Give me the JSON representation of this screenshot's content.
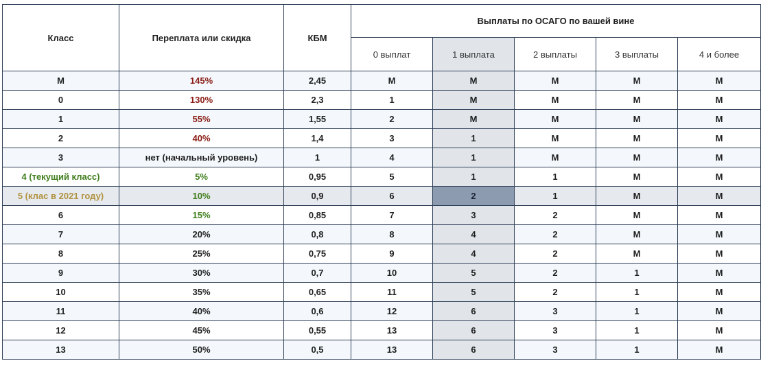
{
  "table": {
    "headers": {
      "class": "Класс",
      "discount": "Переплата или скидка",
      "kbm": "КБМ",
      "payouts_group": "Выплаты по ОСАГО по вашей вине",
      "payouts": [
        "0 выплат",
        "1 выплата",
        "2 выплаты",
        "3 выплаты",
        "4 и более"
      ]
    },
    "rows": [
      {
        "class": "M",
        "discount": "145%",
        "kbm": "2,45",
        "p": [
          "M",
          "M",
          "M",
          "M",
          "M"
        ]
      },
      {
        "class": "0",
        "discount": "130%",
        "kbm": "2,3",
        "p": [
          "1",
          "M",
          "M",
          "M",
          "M"
        ]
      },
      {
        "class": "1",
        "discount": "55%",
        "kbm": "1,55",
        "p": [
          "2",
          "M",
          "M",
          "M",
          "M"
        ]
      },
      {
        "class": "2",
        "discount": "40%",
        "kbm": "1,4",
        "p": [
          "3",
          "1",
          "M",
          "M",
          "M"
        ]
      },
      {
        "class": "3",
        "discount": "нет (начальный уровень)",
        "kbm": "1",
        "p": [
          "4",
          "1",
          "M",
          "M",
          "M"
        ]
      },
      {
        "class": "4 (текущий класс)",
        "discount": "5%",
        "kbm": "0,95",
        "p": [
          "5",
          "1",
          "1",
          "M",
          "M"
        ]
      },
      {
        "class": "5 (клас в 2021 году)",
        "discount": "10%",
        "kbm": "0,9",
        "p": [
          "6",
          "2",
          "1",
          "M",
          "M"
        ]
      },
      {
        "class": "6",
        "discount": "15%",
        "kbm": "0,85",
        "p": [
          "7",
          "3",
          "2",
          "M",
          "M"
        ]
      },
      {
        "class": "7",
        "discount": "20%",
        "kbm": "0,8",
        "p": [
          "8",
          "4",
          "2",
          "M",
          "M"
        ]
      },
      {
        "class": "8",
        "discount": "25%",
        "kbm": "0,75",
        "p": [
          "9",
          "4",
          "2",
          "M",
          "M"
        ]
      },
      {
        "class": "9",
        "discount": "30%",
        "kbm": "0,7",
        "p": [
          "10",
          "5",
          "2",
          "1",
          "M"
        ]
      },
      {
        "class": "10",
        "discount": "35%",
        "kbm": "0,65",
        "p": [
          "11",
          "5",
          "2",
          "1",
          "M"
        ]
      },
      {
        "class": "11",
        "discount": "40%",
        "kbm": "0,6",
        "p": [
          "12",
          "6",
          "3",
          "1",
          "M"
        ]
      },
      {
        "class": "12",
        "discount": "45%",
        "kbm": "0,55",
        "p": [
          "13",
          "6",
          "3",
          "1",
          "M"
        ]
      },
      {
        "class": "13",
        "discount": "50%",
        "kbm": "0,5",
        "p": [
          "13",
          "6",
          "3",
          "1",
          "M"
        ]
      }
    ]
  },
  "colors": {
    "surcharge_red": "#8a1c14",
    "discount_green": "#3f7d1c",
    "current_class_green": "#3f7d1c",
    "class_2021_gold": "#b09340",
    "highlight_column": "#e1e5ea",
    "highlight_cell": "#8d9bb1"
  }
}
